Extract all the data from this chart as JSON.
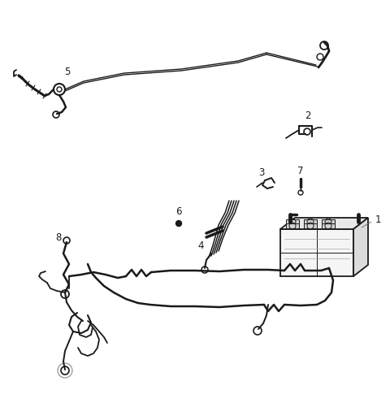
{
  "bg_color": "#ffffff",
  "line_color": "#1a1a1a",
  "fig_width": 4.8,
  "fig_height": 5.12,
  "dpi": 100,
  "label_fontsize": 8.5
}
